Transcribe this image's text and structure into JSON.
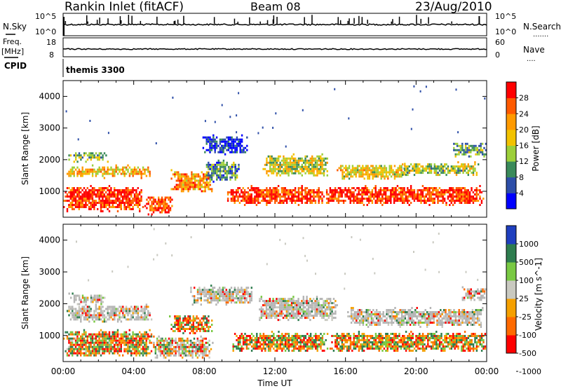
{
  "header": {
    "title": "Rankin Inlet (fitACF)",
    "beam": "Beam 08",
    "date": "23/Aug/2010"
  },
  "colors": {
    "power": [
      "#0000ff",
      "#2d4ea8",
      "#3a8a5a",
      "#9ccf3a",
      "#f2c200",
      "#ff9a00",
      "#ff5a00",
      "#ff0000"
    ],
    "velocity": [
      "#1f3fbf",
      "#2e7d4f",
      "#79c943",
      "#c9c9c0",
      "#f5a000",
      "#ff6a00",
      "#ff0000"
    ],
    "ground_scatter": "#b4b4b4"
  },
  "top_panels": {
    "nsky": {
      "label": "N.Sky",
      "ticks": [
        "10^5",
        "10^0"
      ],
      "right_label": "N.Search",
      "right_ticks": [
        "10^5",
        "10^0"
      ]
    },
    "freq": {
      "label_top": "Freq.",
      "label_unit": "[MHz]",
      "ticks": [
        "18",
        "8"
      ],
      "right_label": "Nave",
      "right_ticks": [
        "60",
        "0"
      ]
    },
    "cpid": {
      "label": "CPID",
      "value": "themis 3300"
    }
  },
  "chart_data": [
    {
      "type": "heatmap",
      "name": "power",
      "xlabel": "",
      "ylabel": "Slant Range [km]",
      "xlim": [
        "00:00",
        "24:00"
      ],
      "ylim": [
        180,
        4500
      ],
      "yticks": [
        "1000",
        "2000",
        "3000",
        "4000"
      ],
      "colorbar_label": "Power [dB]",
      "colorbar_ticks": [
        "4",
        "8",
        "12",
        "16",
        "20",
        "24",
        "28"
      ],
      "colorbar_range": [
        0,
        32
      ],
      "scatter_bands": [
        {
          "t0": 0.0,
          "t1": 4.6,
          "r0": 400,
          "r1": 1200,
          "level": 0.92
        },
        {
          "t0": 4.6,
          "t1": 6.2,
          "r0": 300,
          "r1": 900,
          "level": 0.85
        },
        {
          "t0": 0.1,
          "t1": 5.0,
          "r0": 1450,
          "r1": 1850,
          "level": 0.6
        },
        {
          "t0": 0.2,
          "t1": 2.5,
          "r0": 1950,
          "r1": 2300,
          "level": 0.4
        },
        {
          "t0": 6.0,
          "t1": 8.5,
          "r0": 1000,
          "r1": 1700,
          "level": 0.7
        },
        {
          "t0": 8.0,
          "t1": 10.0,
          "r0": 1300,
          "r1": 2000,
          "level": 0.3
        },
        {
          "t0": 7.8,
          "t1": 10.4,
          "r0": 2200,
          "r1": 2800,
          "level": 0.12
        },
        {
          "t0": 9.2,
          "t1": 14.8,
          "r0": 600,
          "r1": 1200,
          "level": 0.88
        },
        {
          "t0": 11.3,
          "t1": 15.0,
          "r0": 1500,
          "r1": 2200,
          "level": 0.5
        },
        {
          "t0": 14.8,
          "t1": 23.8,
          "r0": 600,
          "r1": 1200,
          "level": 0.9
        },
        {
          "t0": 15.5,
          "t1": 19.5,
          "r0": 1400,
          "r1": 1900,
          "level": 0.55
        },
        {
          "t0": 19.0,
          "t1": 23.5,
          "r0": 1500,
          "r1": 1950,
          "level": 0.45
        },
        {
          "t0": 22.0,
          "t1": 24.0,
          "r0": 2100,
          "r1": 2600,
          "level": 0.35
        }
      ]
    },
    {
      "type": "heatmap",
      "name": "velocity",
      "xlabel": "Time UT",
      "ylabel": "Slant Range [km]",
      "xlim": [
        "00:00",
        "24:00"
      ],
      "ylim": [
        180,
        4500
      ],
      "xticks": [
        "00:00",
        "04:00",
        "08:00",
        "12:00",
        "16:00",
        "20:00",
        "00:00"
      ],
      "yticks": [
        "1000",
        "2000",
        "3000",
        "4000"
      ],
      "colorbar_label": "Velocity [m s^-1]",
      "colorbar_ticks": [
        "1000",
        "500",
        "100",
        "25",
        "-25",
        "-100",
        "-500",
        "-1000"
      ],
      "scatter_bands": [
        {
          "t0": 0.0,
          "t1": 5.0,
          "r0": 350,
          "r1": 1200,
          "level": 0.55
        },
        {
          "t0": 0.1,
          "t1": 5.0,
          "r0": 1450,
          "r1": 2000,
          "level": 0.2
        },
        {
          "t0": 0.3,
          "t1": 2.5,
          "r0": 2000,
          "r1": 2350,
          "level": 0.2
        },
        {
          "t0": 5.0,
          "t1": 8.5,
          "r0": 300,
          "r1": 1000,
          "level": 0.35
        },
        {
          "t0": 6.0,
          "t1": 8.5,
          "r0": 1100,
          "r1": 1700,
          "level": 0.75
        },
        {
          "t0": 7.2,
          "t1": 10.8,
          "r0": 2000,
          "r1": 2600,
          "level": 0.2
        },
        {
          "t0": 9.5,
          "t1": 15.0,
          "r0": 500,
          "r1": 1150,
          "level": 0.85
        },
        {
          "t0": 11.0,
          "t1": 15.5,
          "r0": 1500,
          "r1": 2250,
          "level": 0.2
        },
        {
          "t0": 15.0,
          "t1": 24.0,
          "r0": 500,
          "r1": 1150,
          "level": 0.8
        },
        {
          "t0": 16.0,
          "t1": 23.8,
          "r0": 1300,
          "r1": 1900,
          "level": 0.2
        },
        {
          "t0": 22.5,
          "t1": 24.0,
          "r0": 2100,
          "r1": 2550,
          "level": 0.2
        }
      ]
    }
  ]
}
